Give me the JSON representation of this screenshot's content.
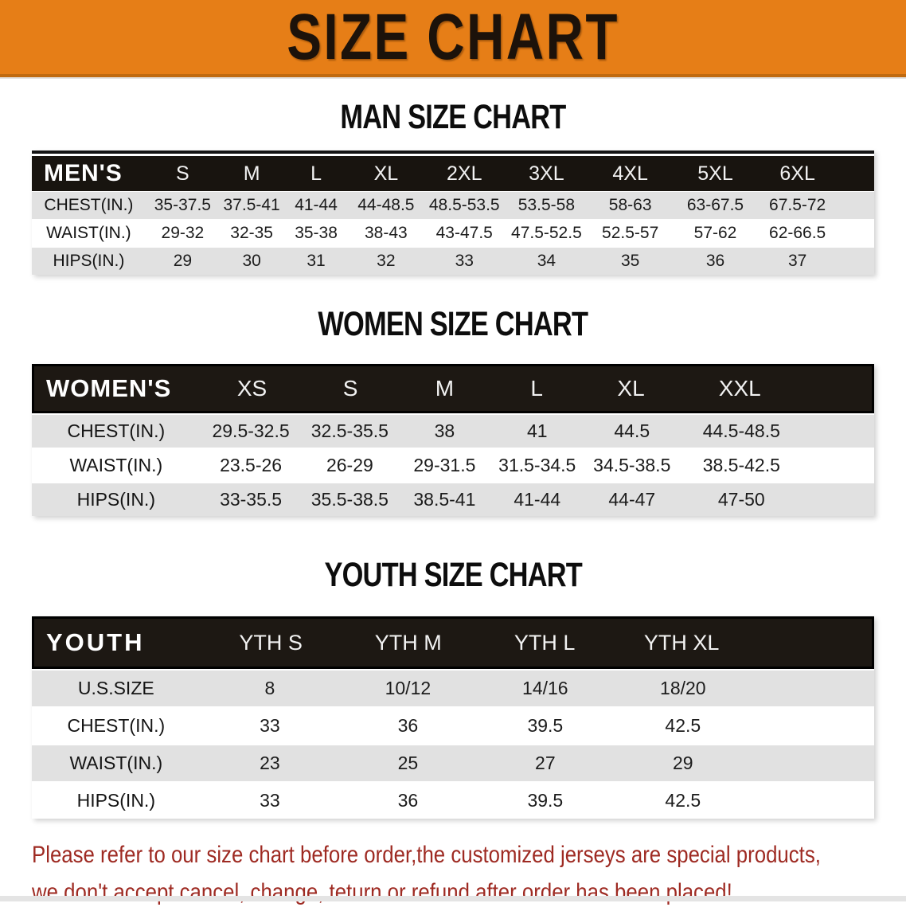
{
  "banner": {
    "title": "SIZE CHART"
  },
  "colors": {
    "banner_orange": "#E67E17",
    "header_black": "#18140f",
    "row_gray": "#e1e1e1",
    "disclaimer_red": "#9E2A22"
  },
  "chart_data": [
    {
      "type": "table",
      "title": "MAN SIZE CHART",
      "corner_label": "MEN'S",
      "columns": [
        "S",
        "M",
        "L",
        "XL",
        "2XL",
        "3XL",
        "4XL",
        "5XL",
        "6XL"
      ],
      "rows": [
        {
          "label": "CHEST(IN.)",
          "values": [
            "35-37.5",
            "37.5-41",
            "41-44",
            "44-48.5",
            "48.5-53.5",
            "53.5-58",
            "58-63",
            "63-67.5",
            "67.5-72"
          ]
        },
        {
          "label": "WAIST(IN.)",
          "values": [
            "29-32",
            "32-35",
            "35-38",
            "38-43",
            "43-47.5",
            "47.5-52.5",
            "52.5-57",
            "57-62",
            "62-66.5"
          ]
        },
        {
          "label": "HIPS(IN.)",
          "values": [
            "29",
            "30",
            "31",
            "32",
            "33",
            "34",
            "35",
            "36",
            "37"
          ]
        }
      ]
    },
    {
      "type": "table",
      "title": "WOMEN SIZE CHART",
      "corner_label": "WOMEN'S",
      "columns": [
        "XS",
        "S",
        "M",
        "L",
        "XL",
        "XXL"
      ],
      "rows": [
        {
          "label": "CHEST(IN.)",
          "values": [
            "29.5-32.5",
            "32.5-35.5",
            "38",
            "41",
            "44.5",
            "44.5-48.5"
          ]
        },
        {
          "label": "WAIST(IN.)",
          "values": [
            "23.5-26",
            "26-29",
            "29-31.5",
            "31.5-34.5",
            "34.5-38.5",
            "38.5-42.5"
          ]
        },
        {
          "label": "HIPS(IN.)",
          "values": [
            "33-35.5",
            "35.5-38.5",
            "38.5-41",
            "41-44",
            "44-47",
            "47-50"
          ]
        }
      ]
    },
    {
      "type": "table",
      "title": "YOUTH SIZE CHART",
      "corner_label": "YOUTH",
      "columns": [
        "YTH S",
        "YTH M",
        "YTH L",
        "YTH XL"
      ],
      "rows": [
        {
          "label": "U.S.SIZE",
          "values": [
            "8",
            "10/12",
            "14/16",
            "18/20"
          ]
        },
        {
          "label": "CHEST(IN.)",
          "values": [
            "33",
            "36",
            "39.5",
            "42.5"
          ]
        },
        {
          "label": "WAIST(IN.)",
          "values": [
            "23",
            "25",
            "27",
            "29"
          ]
        },
        {
          "label": "HIPS(IN.)",
          "values": [
            "33",
            "36",
            "39.5",
            "42.5"
          ]
        }
      ]
    }
  ],
  "disclaimer": {
    "line1": "Please refer to our size chart before order,the customized jerseys are special products,",
    "line2": "we don't accept cancel, change, teturn or refund after order has been placed!"
  }
}
